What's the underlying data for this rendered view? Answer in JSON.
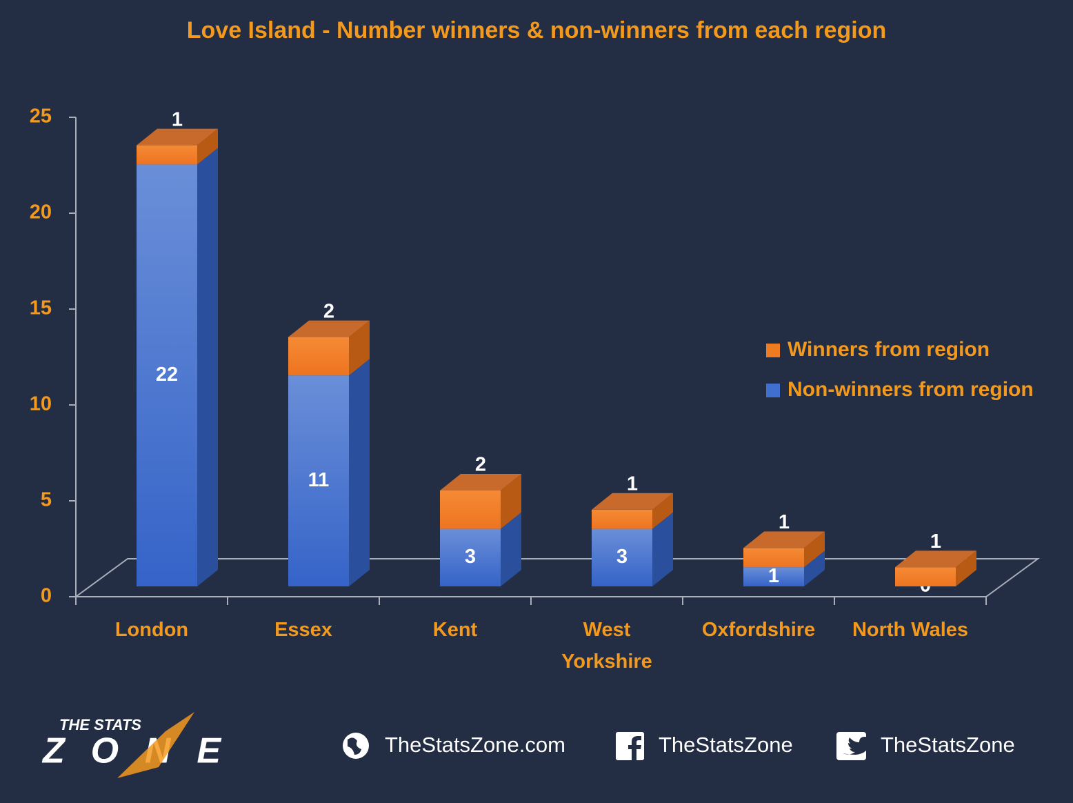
{
  "chart_data": {
    "type": "bar3d_stacked",
    "title": "Love Island - Number winners & non-winners from each region",
    "categories": [
      "London",
      "Essex",
      "Kent",
      "West Yorkshire",
      "Oxfordshire",
      "North Wales"
    ],
    "series": [
      {
        "name": "Non-winners from region",
        "color": "#3f6fcf",
        "values": [
          22,
          11,
          3,
          3,
          1,
          0
        ]
      },
      {
        "name": "Winners from region",
        "color": "#f07c22",
        "values": [
          1,
          2,
          2,
          1,
          1,
          1
        ]
      }
    ],
    "ylim": [
      0,
      25
    ],
    "yticks": [
      0,
      5,
      10,
      15,
      20,
      25
    ],
    "legend": "right"
  },
  "footer": {
    "logo_top": "THE STATS",
    "logo_bottom": "ZONE",
    "website": "TheStatsZone.com",
    "facebook": "TheStatsZone",
    "twitter": "TheStatsZone"
  }
}
